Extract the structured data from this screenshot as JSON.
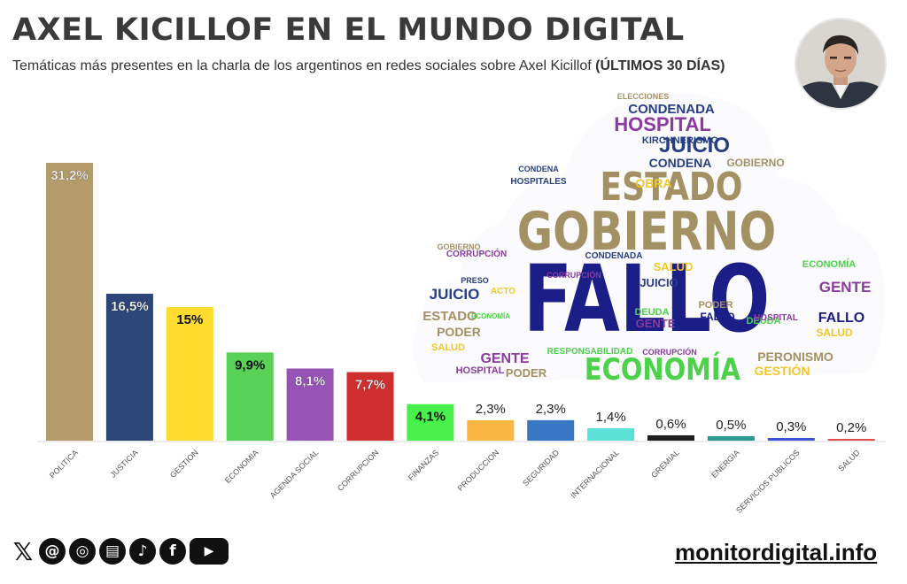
{
  "header": {
    "title": "AXEL KICILLOF EN EL MUNDO DIGITAL",
    "subtitle_main": "Temáticas más presentes en la charla de los argentinos en redes sociales sobre Axel Kicillof",
    "subtitle_bold": "(ÚLTIMOS 30 DÍAS)"
  },
  "chart_data": {
    "type": "bar",
    "title": "AXEL KICILLOF EN EL MUNDO DIGITAL",
    "xlabel": "",
    "ylabel": "",
    "ylim": [
      0,
      31.2
    ],
    "grid": false,
    "legend": "none",
    "categories": [
      "POLITICA",
      "JUSTICIA",
      "GESTION",
      "ECONOMIA",
      "AGENDA SOCIAL",
      "CORRUPCION",
      "FINANZAS",
      "PRODUCCION",
      "SEGURIDAD",
      "INTERNACIONAL",
      "GREMIAL",
      "ENERGIA",
      "SERVICIOS PUBLICOS",
      "SALUD"
    ],
    "values": [
      31.2,
      16.5,
      15,
      9.9,
      8.1,
      7.7,
      4.1,
      2.3,
      2.3,
      1.4,
      0.6,
      0.5,
      0.3,
      0.2
    ],
    "value_labels": [
      "31,2%",
      "16,5%",
      "15%",
      "9,9%",
      "8,1%",
      "7,7%",
      "4,1%",
      "2,3%",
      "2,3%",
      "1,4%",
      "0,6%",
      "0,5%",
      "0,3%",
      "0,2%"
    ],
    "colors": [
      "#b39a69",
      "#2c4679",
      "#fddc2e",
      "#58d157",
      "#9653b5",
      "#cf2e2e",
      "#47f04a",
      "#fab542",
      "#3877c4",
      "#5be1d5",
      "#1e1e1e",
      "#2b9b92",
      "#3d52d6",
      "#e04d4f"
    ]
  },
  "word_cloud": {
    "words": [
      {
        "text": "FALLO",
        "color": "#1b1e86"
      },
      {
        "text": "GOBIERNO",
        "color": "#a39063"
      },
      {
        "text": "ESTADO",
        "color": "#a39063"
      },
      {
        "text": "ECONOMÍA",
        "color": "#4cd14b"
      },
      {
        "text": "HOSPITAL",
        "color": "#8b3aa0"
      },
      {
        "text": "JUICIO",
        "color": "#283e82"
      },
      {
        "text": "CONDENADA",
        "color": "#283e82"
      },
      {
        "text": "CONDENA",
        "color": "#283e82"
      },
      {
        "text": "GENTE",
        "color": "#8b3aa0"
      },
      {
        "text": "PERONISMO",
        "color": "#a39063"
      },
      {
        "text": "GESTIÓN",
        "color": "#f1c729"
      },
      {
        "text": "SALUD",
        "color": "#f1c729"
      },
      {
        "text": "OBRA",
        "color": "#f1c729"
      },
      {
        "text": "PODER",
        "color": "#a39063"
      },
      {
        "text": "DEUDA",
        "color": "#4cd14b"
      },
      {
        "text": "CORRUPCIÓN",
        "color": "#8b3aa0"
      },
      {
        "text": "RESPONSABILIDAD",
        "color": "#4cd14b"
      },
      {
        "text": "HOSPITALES",
        "color": "#283e82"
      },
      {
        "text": "KIRCHNERISMO",
        "color": "#283e82"
      },
      {
        "text": "PRESO",
        "color": "#283e82"
      },
      {
        "text": "ACTO",
        "color": "#f1c729"
      },
      {
        "text": "ELECCIONES",
        "color": "#a39063"
      }
    ]
  },
  "footer": {
    "site": "monitordigital.info",
    "social_icons": [
      "x-icon",
      "threads-icon",
      "instagram-icon",
      "news-icon",
      "tiktok-icon",
      "facebook-icon",
      "youtube-icon"
    ]
  }
}
